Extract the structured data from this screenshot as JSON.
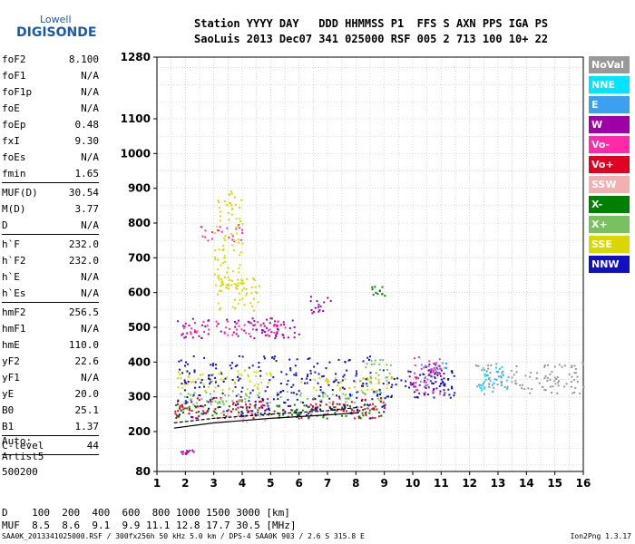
{
  "logo": {
    "line1": "Lowell",
    "line2": "DIGISONDE"
  },
  "header": {
    "labels": "Station YYYY DAY   DDD HHMMSS P1  FFS S AXN PPS IGA PS",
    "values": "SaoLuis 2013 Dec07 341 025000 RSF 005 2 713 100 10+ 22"
  },
  "params": {
    "group1": [
      {
        "name": "foF2",
        "value": "8.100"
      },
      {
        "name": "foF1",
        "value": "N/A"
      },
      {
        "name": "foF1p",
        "value": "N/A"
      },
      {
        "name": "foE",
        "value": "N/A"
      },
      {
        "name": "foEp",
        "value": "0.48"
      },
      {
        "name": "fxI",
        "value": "9.30"
      },
      {
        "name": "foEs",
        "value": "N/A"
      },
      {
        "name": "fmin",
        "value": "1.65"
      }
    ],
    "group2": [
      {
        "name": "MUF(D)",
        "value": "30.54"
      },
      {
        "name": "M(D)",
        "value": "3.77"
      },
      {
        "name": "D",
        "value": "N/A"
      }
    ],
    "group3": [
      {
        "name": "h`F",
        "value": "232.0"
      },
      {
        "name": "h`F2",
        "value": "232.0"
      },
      {
        "name": "h`E",
        "value": "N/A"
      },
      {
        "name": "h`Es",
        "value": "N/A"
      }
    ],
    "group4": [
      {
        "name": "hmF2",
        "value": "256.5"
      },
      {
        "name": "hmF1",
        "value": "N/A"
      },
      {
        "name": "hmE",
        "value": "110.0"
      },
      {
        "name": "yF2",
        "value": "22.6"
      },
      {
        "name": "yF1",
        "value": "N/A"
      },
      {
        "name": "yE",
        "value": "20.0"
      },
      {
        "name": "B0",
        "value": "25.1"
      },
      {
        "name": "B1",
        "value": "1.37"
      }
    ],
    "clevel": {
      "name": "C-level",
      "value": "44"
    }
  },
  "auto": {
    "line1": "Auto:",
    "line2": "Artist5",
    "line3": "500200"
  },
  "legend": [
    {
      "label": "NoVal",
      "color": "#999999"
    },
    {
      "label": "NNE",
      "color": "#00e5ff"
    },
    {
      "label": "E",
      "color": "#3aa0f0"
    },
    {
      "label": "W",
      "color": "#a000a8"
    },
    {
      "label": "Vo-",
      "color": "#ff2aa8"
    },
    {
      "label": "Vo+",
      "color": "#e00020"
    },
    {
      "label": "SSW",
      "color": "#f2b0b0"
    },
    {
      "label": "X-",
      "color": "#008000"
    },
    {
      "label": "X+",
      "color": "#78c060"
    },
    {
      "label": "SSE",
      "color": "#d8d800"
    },
    {
      "label": "NNW",
      "color": "#1010c0"
    }
  ],
  "bottom": {
    "line1": "D    100  200  400  600  800 1000 1500 3000 [km]",
    "line2": "MUF  8.5  8.6  9.1  9.9 11.1 12.8 17.7 30.5 [MHz]"
  },
  "footer": "SAA0K_2013341025000.RSF / 300fx256h 50 kHz 5.0 km / DPS-4 SAA0K 903 / 2.6 S 315.8 E",
  "version": "Ion2Png 1.3.17",
  "chart_data": {
    "type": "scatter",
    "x_range": [
      1,
      16
    ],
    "y_range": [
      80,
      1280
    ],
    "x_ticks": [
      "1",
      "2",
      "3",
      "4",
      "5",
      "6",
      "7",
      "8",
      "9",
      "10",
      "11",
      "12",
      "13",
      "14",
      "15",
      "16"
    ],
    "y_ticks": [
      80,
      200,
      300,
      400,
      500,
      600,
      700,
      800,
      900,
      1000,
      1100,
      1280
    ],
    "grid": true,
    "series": [
      {
        "name": "NoVal",
        "clusters": [
          [
            12.2,
            16,
            310,
            400
          ]
        ]
      },
      {
        "name": "NNE",
        "clusters": [
          [
            12.3,
            13.3,
            320,
            390
          ]
        ]
      },
      {
        "name": "E",
        "clusters": [
          [
            10.0,
            11.2,
            330,
            400
          ],
          [
            12.3,
            13.2,
            330,
            380
          ]
        ]
      },
      {
        "name": "W",
        "clusters": [
          [
            1.7,
            6.0,
            470,
            530
          ],
          [
            1.7,
            2.3,
            130,
            150
          ],
          [
            6.3,
            7.2,
            540,
            600
          ],
          [
            9.8,
            11.1,
            310,
            400
          ]
        ]
      },
      {
        "name": "Vo-",
        "clusters": [
          [
            2.5,
            4.0,
            750,
            800
          ],
          [
            1.7,
            5.5,
            480,
            520
          ],
          [
            10.0,
            11.0,
            310,
            420
          ]
        ]
      },
      {
        "name": "Vo+",
        "clusters": [
          [
            1.6,
            9.0,
            240,
            280
          ],
          [
            1.7,
            5.0,
            260,
            300
          ],
          [
            6.3,
            9.0,
            260,
            300
          ]
        ]
      },
      {
        "name": "SSW",
        "clusters": [
          [
            3.0,
            5.0,
            230,
            260
          ]
        ]
      },
      {
        "name": "X-",
        "clusters": [
          [
            1.6,
            9.0,
            240,
            280
          ],
          [
            8.5,
            9.0,
            590,
            620
          ]
        ]
      },
      {
        "name": "X+",
        "clusters": [
          [
            1.7,
            9.0,
            280,
            320
          ],
          [
            8.0,
            9.3,
            330,
            410
          ]
        ]
      },
      {
        "name": "SSE",
        "clusters": [
          [
            3.0,
            4.6,
            550,
            650
          ],
          [
            1.7,
            5.0,
            320,
            380
          ],
          [
            6.0,
            9.3,
            320,
            360
          ],
          [
            3.0,
            4.0,
            600,
            900
          ]
        ]
      },
      {
        "name": "NNW",
        "clusters": [
          [
            1.7,
            9.0,
            240,
            420
          ],
          [
            9.0,
            11.5,
            300,
            380
          ]
        ]
      }
    ],
    "profile_curve": [
      [
        1.6,
        210
      ],
      [
        3,
        225
      ],
      [
        5,
        238
      ],
      [
        7,
        248
      ],
      [
        8.1,
        254
      ]
    ],
    "trace_curve": [
      [
        1.6,
        225
      ],
      [
        3,
        238
      ],
      [
        5,
        250
      ],
      [
        7,
        260
      ],
      [
        8.1,
        270
      ]
    ]
  }
}
